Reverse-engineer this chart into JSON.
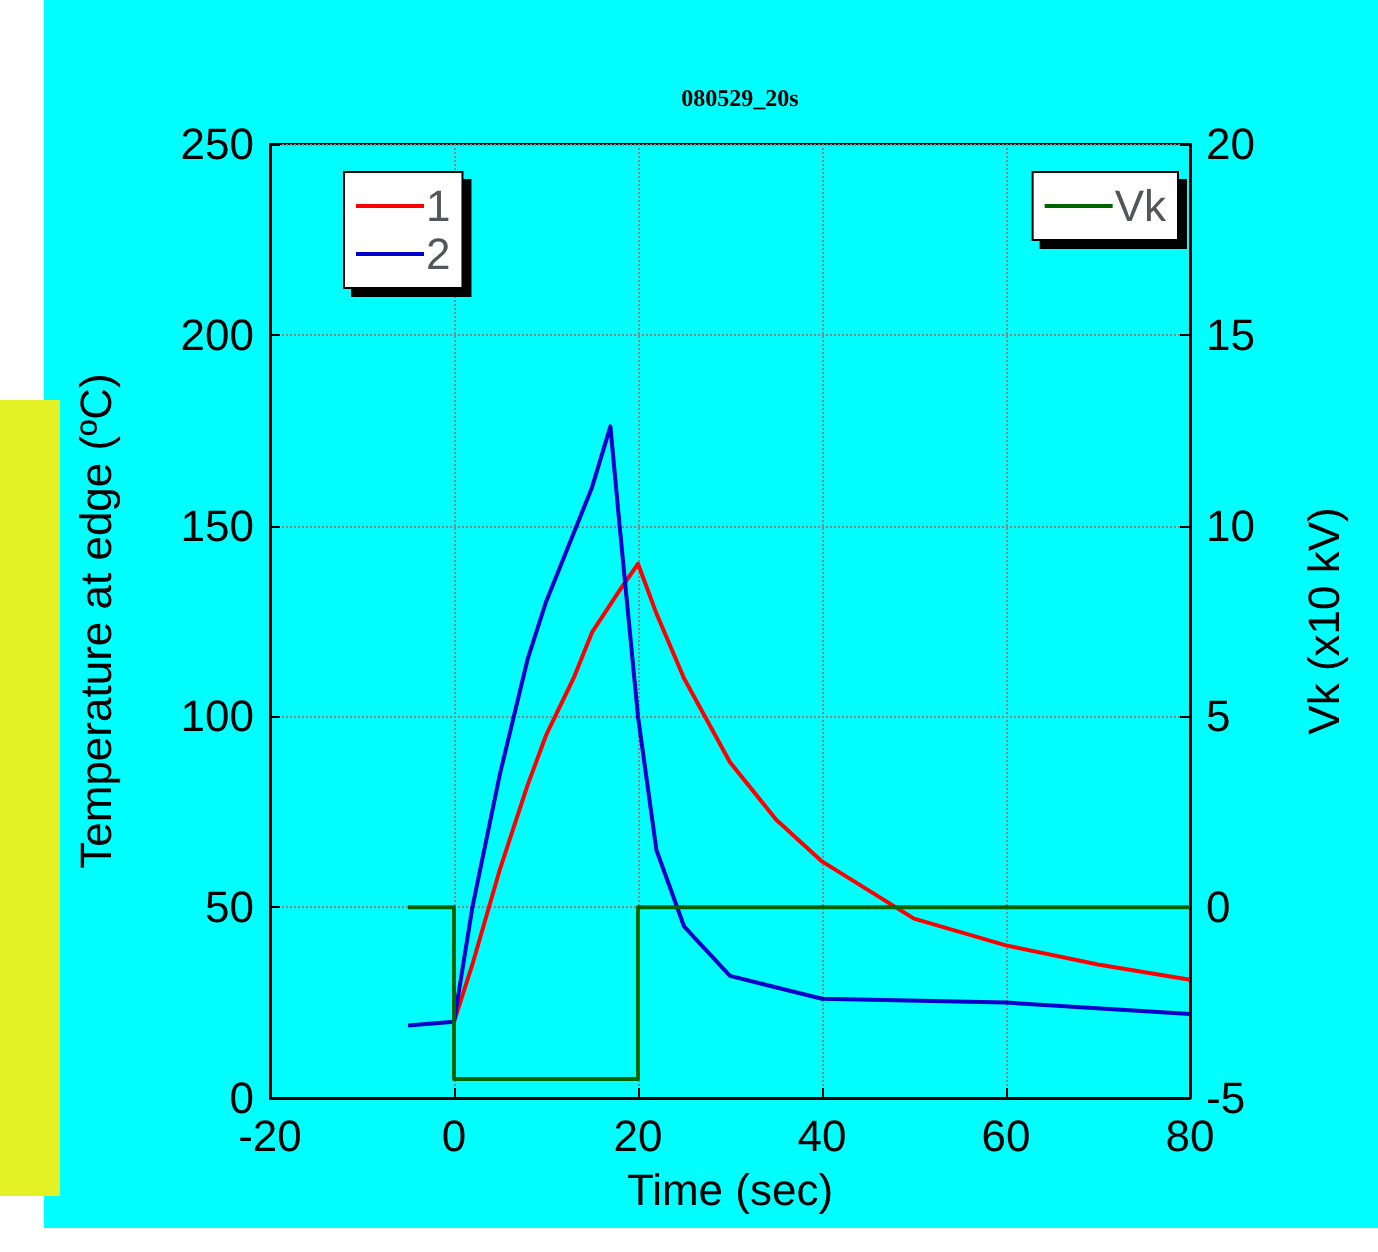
{
  "chart_data": {
    "type": "line",
    "title": "080529_20s",
    "xlabel": "Time (sec)",
    "ylabel": "Temperature at edge (ºC)",
    "y2label": "Vk (x10 kV)",
    "series": [
      {
        "name": "1",
        "color": "#ff0000",
        "x": [
          0,
          2,
          5,
          8,
          10,
          13,
          15,
          18,
          20,
          22,
          25,
          30,
          35,
          40,
          50,
          60,
          70,
          80
        ],
        "values": [
          20,
          35,
          60,
          82,
          95,
          110,
          122,
          133,
          140,
          127,
          110,
          88,
          73,
          62,
          47,
          40,
          35,
          31
        ]
      },
      {
        "name": "2",
        "color": "#0000cc",
        "x": [
          -5,
          0,
          2,
          5,
          8,
          10,
          13,
          15,
          17,
          18,
          20,
          22,
          25,
          30,
          40,
          60,
          80
        ],
        "values": [
          19,
          20,
          50,
          85,
          115,
          130,
          148,
          160,
          176,
          150,
          100,
          65,
          45,
          32,
          26,
          25,
          22
        ]
      },
      {
        "name": "Vk",
        "color": "#006400",
        "type": "step",
        "axis": "y2",
        "x": [
          -5,
          0,
          20,
          80
        ],
        "values": [
          0,
          -4.5,
          0,
          0
        ]
      }
    ],
    "xlim": [
      -20,
      80
    ],
    "xticks": [
      -20,
      0,
      20,
      40,
      60,
      80
    ],
    "ylim": [
      0,
      250
    ],
    "yticks": [
      0,
      50,
      100,
      150,
      200,
      250
    ],
    "y2lim": [
      -5,
      20
    ],
    "y2ticks": [
      -5,
      0,
      5,
      10,
      15,
      20
    ],
    "grid": true,
    "legend": "top left",
    "marker": "none",
    "line_style": "solid"
  }
}
